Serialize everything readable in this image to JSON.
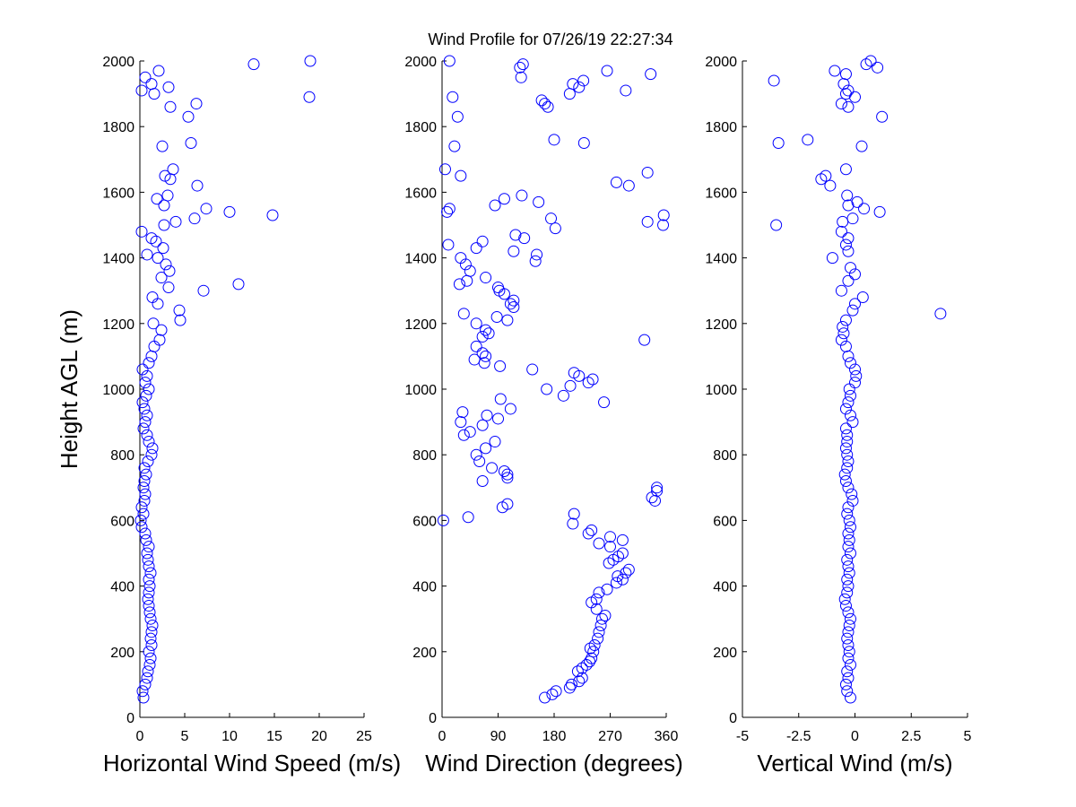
{
  "chart_data": [
    {
      "type": "scatter",
      "xlabel": "Horizontal Wind Speed (m/s)",
      "ylabel": "Height AGL (m)",
      "color": "#0000ff",
      "xlim": [
        0,
        25
      ],
      "xticks": [
        0,
        5,
        10,
        15,
        20,
        25
      ],
      "ylim": [
        0,
        2000
      ],
      "yticks": [
        0,
        200,
        400,
        600,
        800,
        1000,
        1200,
        1400,
        1600,
        1800,
        2000
      ],
      "x": [
        0.4,
        0.3,
        0.6,
        0.8,
        0.9,
        1.1,
        1.2,
        1.0,
        1.3,
        1.2,
        1.3,
        1.4,
        1.2,
        1.1,
        1.0,
        0.9,
        1.0,
        1.1,
        1.0,
        1.2,
        1.0,
        0.9,
        0.8,
        1.0,
        0.7,
        0.6,
        0.2,
        0.1,
        0.4,
        0.2,
        0.5,
        0.6,
        0.4,
        0.5,
        0.7,
        0.5,
        0.9,
        1.3,
        1.4,
        1.0,
        0.8,
        0.4,
        0.6,
        0.8,
        0.5,
        0.3,
        0.7,
        1.0,
        0.6,
        0.8,
        0.3,
        1.0,
        1.3,
        1.6,
        2.2,
        2.4,
        1.5,
        4.5,
        4.4,
        2.0,
        1.4,
        7.1,
        3.2,
        11.0,
        2.4,
        3.3,
        2.9,
        2.0,
        0.8,
        2.6,
        1.8,
        1.3,
        0.2,
        2.7,
        4.0,
        6.1,
        14.8,
        10.0,
        7.4,
        2.7,
        1.9,
        3.1,
        6.4,
        3.4,
        2.8,
        3.7,
        2.5,
        5.7,
        5.4,
        3.4,
        6.3,
        18.9,
        1.6,
        0.2,
        3.2,
        1.3,
        0.6,
        2.1,
        12.7,
        19.0
      ],
      "y": [
        60,
        80,
        100,
        120,
        140,
        160,
        180,
        200,
        220,
        240,
        260,
        280,
        300,
        320,
        340,
        360,
        380,
        400,
        420,
        440,
        460,
        480,
        500,
        520,
        540,
        560,
        580,
        600,
        620,
        640,
        660,
        680,
        700,
        720,
        740,
        760,
        780,
        800,
        820,
        840,
        860,
        880,
        900,
        920,
        940,
        960,
        980,
        1000,
        1020,
        1040,
        1060,
        1080,
        1100,
        1130,
        1150,
        1180,
        1200,
        1210,
        1240,
        1260,
        1280,
        1300,
        1310,
        1320,
        1340,
        1360,
        1380,
        1400,
        1410,
        1430,
        1450,
        1460,
        1480,
        1500,
        1510,
        1520,
        1530,
        1540,
        1550,
        1560,
        1580,
        1590,
        1620,
        1640,
        1650,
        1670,
        1740,
        1750,
        1830,
        1860,
        1870,
        1890,
        1900,
        1910,
        1920,
        1930,
        1950,
        1970,
        1990,
        2000
      ]
    },
    {
      "type": "scatter",
      "title": "Wind Profile for  07/26/19 22:27:34",
      "xlabel": "Wind Direction (degrees)",
      "color": "#0000ff",
      "xlim": [
        0,
        360
      ],
      "xticks": [
        0,
        90,
        180,
        270,
        360
      ],
      "ylim": [
        0,
        2000
      ],
      "yticks": [
        0,
        200,
        400,
        600,
        800,
        1000,
        1200,
        1400,
        1600,
        1800,
        2000
      ],
      "x": [
        165,
        177,
        183,
        205,
        208,
        220,
        225,
        218,
        225,
        232,
        237,
        240,
        243,
        238,
        245,
        250,
        252,
        255,
        257,
        262,
        248,
        240,
        248,
        252,
        265,
        280,
        290,
        282,
        295,
        300,
        268,
        275,
        283,
        290,
        270,
        252,
        290,
        270,
        235,
        240,
        210,
        2,
        42,
        212,
        97,
        105,
        342,
        337,
        345,
        345,
        65,
        105,
        105,
        100,
        80,
        60,
        55,
        70,
        85,
        35,
        45,
        65,
        30,
        90,
        72,
        33,
        110,
        260,
        94,
        195,
        168,
        206,
        235,
        242,
        220,
        212,
        145,
        93,
        68,
        52,
        70,
        65,
        55,
        325,
        65,
        75,
        70,
        55,
        105,
        88,
        35,
        115,
        110,
        115,
        100,
        92,
        90,
        28,
        40,
        70,
        45,
        38,
        150,
        30,
        152,
        115,
        55,
        10,
        65,
        132,
        118,
        182,
        355,
        330,
        175,
        356,
        8,
        12,
        85,
        155,
        100,
        128,
        300,
        280,
        30,
        330,
        5,
        20,
        228,
        180,
        25,
        170,
        165,
        160,
        17,
        205,
        295,
        220,
        210,
        227,
        127,
        335,
        265,
        125,
        130,
        12
      ],
      "y": [
        60,
        70,
        80,
        90,
        100,
        110,
        120,
        140,
        150,
        160,
        170,
        180,
        200,
        210,
        220,
        240,
        260,
        280,
        300,
        310,
        330,
        350,
        360,
        380,
        390,
        410,
        420,
        430,
        440,
        450,
        470,
        480,
        490,
        500,
        520,
        530,
        540,
        550,
        560,
        570,
        590,
        600,
        610,
        620,
        640,
        650,
        660,
        670,
        690,
        700,
        720,
        730,
        740,
        750,
        760,
        780,
        800,
        820,
        840,
        860,
        870,
        890,
        900,
        910,
        920,
        930,
        940,
        960,
        970,
        980,
        1000,
        1010,
        1020,
        1030,
        1040,
        1050,
        1060,
        1070,
        1080,
        1090,
        1100,
        1110,
        1130,
        1150,
        1160,
        1170,
        1180,
        1200,
        1210,
        1220,
        1230,
        1250,
        1260,
        1270,
        1290,
        1300,
        1310,
        1320,
        1330,
        1340,
        1360,
        1380,
        1390,
        1400,
        1410,
        1420,
        1430,
        1440,
        1450,
        1460,
        1470,
        1490,
        1500,
        1510,
        1520,
        1530,
        1540,
        1550,
        1560,
        1570,
        1580,
        1590,
        1620,
        1630,
        1650,
        1660,
        1670,
        1740,
        1750,
        1760,
        1830,
        1860,
        1870,
        1880,
        1890,
        1900,
        1910,
        1920,
        1930,
        1940,
        1950,
        1960,
        1970,
        1980,
        1990,
        2000
      ]
    },
    {
      "type": "scatter",
      "xlabel": "Vertical Wind (m/s)",
      "color": "#0000ff",
      "xlim": [
        -5,
        5
      ],
      "xticks": [
        -5,
        -2.5,
        0,
        2.5,
        5
      ],
      "ylim": [
        0,
        2000
      ],
      "yticks": [
        0,
        200,
        400,
        600,
        800,
        1000,
        1200,
        1400,
        1600,
        1800,
        2000
      ],
      "x": [
        -0.2,
        -0.35,
        -0.4,
        -0.3,
        -0.35,
        -0.2,
        -0.3,
        -0.25,
        -0.3,
        -0.35,
        -0.3,
        -0.25,
        -0.2,
        -0.3,
        -0.4,
        -0.45,
        -0.35,
        -0.3,
        -0.35,
        -0.25,
        -0.3,
        -0.35,
        -0.2,
        -0.3,
        -0.25,
        -0.3,
        -0.2,
        -0.25,
        -0.35,
        -0.3,
        -0.1,
        -0.15,
        -0.3,
        -0.4,
        -0.45,
        -0.35,
        -0.3,
        -0.35,
        -0.4,
        -0.35,
        -0.35,
        -0.4,
        -0.1,
        -0.2,
        -0.4,
        -0.3,
        -0.2,
        -0.25,
        0.0,
        0.05,
        0.0,
        -0.2,
        -0.3,
        -0.4,
        -0.6,
        -0.5,
        -0.55,
        -0.4,
        3.8,
        -0.1,
        0.0,
        0.35,
        -0.6,
        -0.3,
        0.0,
        -0.2,
        -1.0,
        -0.3,
        -0.4,
        -0.3,
        -0.6,
        -3.5,
        -0.55,
        -0.1,
        1.1,
        0.4,
        -0.3,
        0.1,
        -0.35,
        -1.1,
        -1.5,
        -1.3,
        -0.4,
        0.3,
        -3.4,
        -2.1,
        1.2,
        -0.3,
        -0.6,
        0.0,
        -0.4,
        -0.3,
        -0.5,
        -3.6,
        -0.4,
        -0.9,
        1.0,
        0.5,
        0.7
      ],
      "y": [
        60,
        80,
        100,
        120,
        140,
        160,
        180,
        200,
        220,
        240,
        260,
        280,
        300,
        320,
        340,
        360,
        380,
        400,
        420,
        440,
        460,
        480,
        500,
        520,
        540,
        560,
        580,
        600,
        620,
        640,
        660,
        680,
        700,
        720,
        740,
        760,
        780,
        800,
        820,
        840,
        860,
        880,
        900,
        920,
        940,
        960,
        980,
        1000,
        1020,
        1040,
        1060,
        1080,
        1100,
        1130,
        1150,
        1170,
        1190,
        1210,
        1230,
        1240,
        1260,
        1280,
        1300,
        1330,
        1350,
        1370,
        1400,
        1420,
        1440,
        1460,
        1480,
        1500,
        1510,
        1520,
        1540,
        1550,
        1560,
        1570,
        1590,
        1620,
        1640,
        1650,
        1670,
        1740,
        1750,
        1760,
        1830,
        1860,
        1870,
        1890,
        1900,
        1910,
        1930,
        1940,
        1960,
        1970,
        1980,
        1990,
        2000
      ]
    }
  ]
}
